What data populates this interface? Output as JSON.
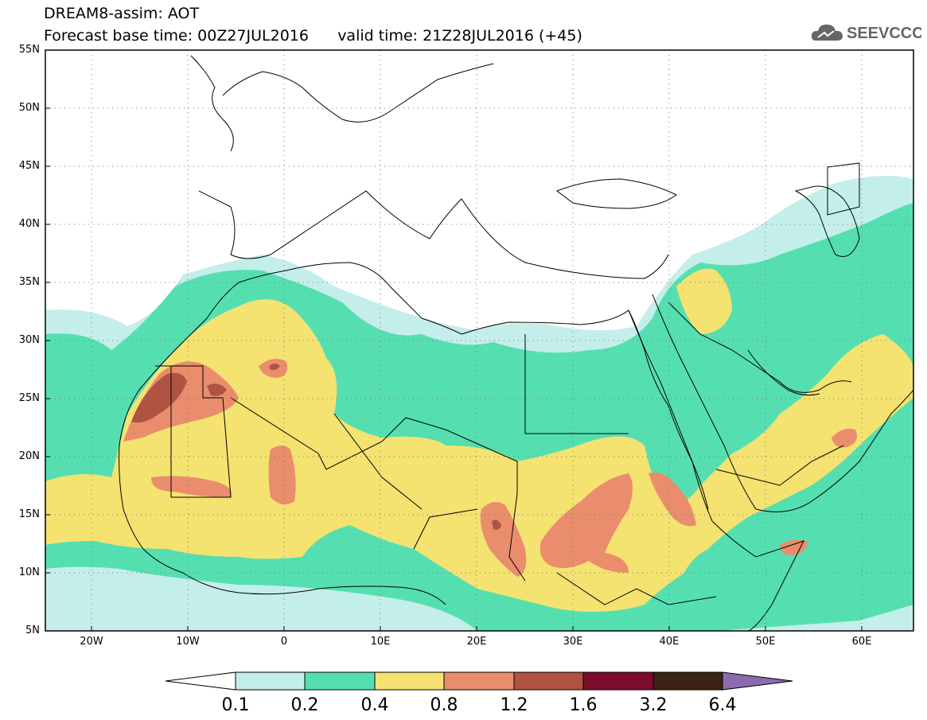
{
  "title": {
    "line1": "DREAM8-assim: AOT",
    "line2": "Forecast base time: 00Z27JUL2016      valid time: 21Z28JUL2016 (+45)"
  },
  "logo": {
    "text": "SEEVCCC",
    "icon": "cloud-icon"
  },
  "map": {
    "lon_range": [
      -25,
      65
    ],
    "lat_range": [
      5,
      55
    ],
    "grid": "dotted",
    "y_ticks": [
      "55N",
      "50N",
      "45N",
      "40N",
      "35N",
      "30N",
      "25N",
      "20N",
      "15N",
      "10N",
      "5N"
    ],
    "x_ticks": [
      "20W",
      "10W",
      "0",
      "10E",
      "20E",
      "30E",
      "40E",
      "50E",
      "60E"
    ]
  },
  "colorbar": {
    "labels": [
      "0.1",
      "0.2",
      "0.4",
      "0.8",
      "1.2",
      "1.6",
      "3.2",
      "6.4"
    ],
    "colors": [
      "#c4eeea",
      "#55dfb1",
      "#f4e271",
      "#e98d6c",
      "#b05343",
      "#7e0c2d",
      "#3b2214",
      "#8b6bb0"
    ]
  }
}
